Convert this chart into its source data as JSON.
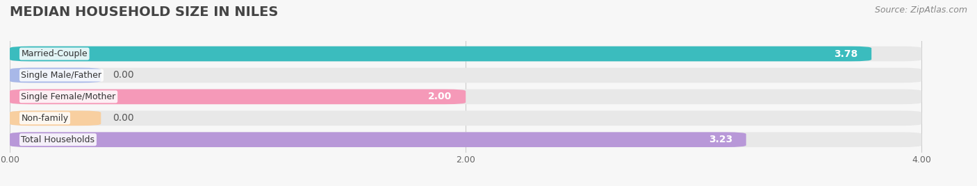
{
  "title": "MEDIAN HOUSEHOLD SIZE IN NILES",
  "source": "Source: ZipAtlas.com",
  "categories": [
    "Married-Couple",
    "Single Male/Father",
    "Single Female/Mother",
    "Non-family",
    "Total Households"
  ],
  "values": [
    3.78,
    0.0,
    2.0,
    0.0,
    3.23
  ],
  "bar_colors": [
    "#3bbcbe",
    "#a8b8e8",
    "#f599b8",
    "#f8cfa0",
    "#b898d8"
  ],
  "background_colors": [
    "#eeeeee",
    "#eeeeee",
    "#eeeeee",
    "#eeeeee",
    "#eeeeee"
  ],
  "xlim": [
    0,
    4.2
  ],
  "xlim_display": 4.0,
  "xticks": [
    0.0,
    2.0,
    4.0
  ],
  "xtick_labels": [
    "0.00",
    "2.00",
    "4.00"
  ],
  "title_fontsize": 14,
  "bar_label_fontsize": 10,
  "cat_label_fontsize": 9,
  "tick_fontsize": 9,
  "source_fontsize": 9,
  "figsize": [
    14.06,
    2.68
  ],
  "dpi": 100,
  "bar_height": 0.7,
  "fig_bg": "#f7f7f7"
}
